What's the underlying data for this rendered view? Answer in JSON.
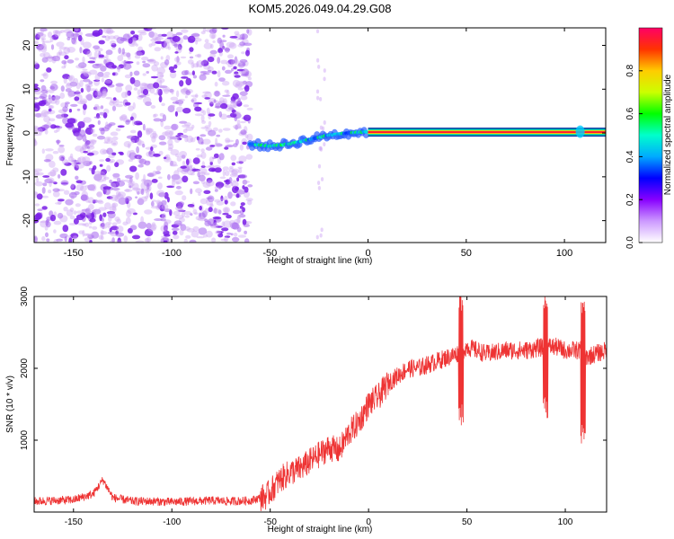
{
  "chart_data": [
    {
      "type": "heatmap",
      "title": "KOM5.2026.049.04.29.G08",
      "xlabel": "Height of straight line (km)",
      "ylabel": "Frequency (Hz)",
      "xlim": [
        -170,
        121
      ],
      "ylim": [
        -25,
        24
      ],
      "x_ticks": [
        -150,
        -100,
        -50,
        0,
        50,
        100
      ],
      "y_ticks": [
        -20,
        -10,
        0,
        10,
        20
      ],
      "colorbar": {
        "label": "Normalized spectral amplitude",
        "range": [
          0,
          1
        ],
        "ticks": [
          0.0,
          0.2,
          0.4,
          0.6,
          0.8
        ],
        "tick_labels": [
          "0.0",
          "0.2",
          "0.4",
          "0.6",
          "0.8"
        ]
      },
      "features": [
        {
          "name": "noise-field",
          "x_range": [
            -170,
            -60
          ],
          "freq_range": [
            -25,
            24
          ],
          "amplitude_range": [
            0.05,
            0.12
          ],
          "description_color": "purple"
        },
        {
          "name": "drift-track",
          "points": [
            [
              -60,
              -2.5
            ],
            [
              -50,
              -3.0
            ],
            [
              -40,
              -2.5
            ],
            [
              -30,
              -1.5
            ],
            [
              -20,
              -0.5
            ],
            [
              -10,
              0
            ],
            [
              0,
              0.3
            ]
          ],
          "amplitude": 0.45
        },
        {
          "name": "stable-line",
          "x_range": [
            0,
            121
          ],
          "freq": 0.2,
          "amplitude": 0.95
        },
        {
          "name": "line-blob",
          "x": 108,
          "freq": 0.3,
          "amplitude": 0.4
        }
      ]
    },
    {
      "type": "line",
      "xlabel": "Height of straight line (km)",
      "ylabel": "SNR (10 * v/v)",
      "xlim": [
        -170,
        121
      ],
      "ylim": [
        0,
        3000
      ],
      "x_ticks": [
        -150,
        -100,
        -50,
        0,
        50,
        100
      ],
      "y_ticks": [
        1000,
        2000,
        3000
      ],
      "series": [
        {
          "name": "SNR",
          "color": "#ee3333",
          "x": [
            -170,
            -160,
            -150,
            -140,
            -135,
            -130,
            -120,
            -110,
            -100,
            -90,
            -80,
            -70,
            -60,
            -52,
            -48,
            -45,
            -40,
            -35,
            -30,
            -25,
            -20,
            -15,
            -10,
            -5,
            0,
            5,
            10,
            15,
            20,
            25,
            30,
            35,
            40,
            45,
            48,
            50,
            55,
            60,
            70,
            80,
            90,
            95,
            100,
            108,
            110,
            115,
            121
          ],
          "values": [
            150,
            160,
            170,
            250,
            450,
            200,
            150,
            150,
            140,
            150,
            160,
            150,
            160,
            220,
            350,
            450,
            550,
            600,
            700,
            800,
            900,
            850,
            1100,
            1250,
            1500,
            1600,
            1800,
            1900,
            2000,
            2000,
            2050,
            2100,
            2150,
            2200,
            2250,
            2300,
            2250,
            2200,
            2250,
            2250,
            2300,
            2300,
            2250,
            2250,
            2150,
            2200,
            2250
          ],
          "spikes": [
            {
              "x": 47,
              "peak": 3050,
              "dip": 1200
            },
            {
              "x": 90,
              "peak": 3050,
              "dip": 1300
            },
            {
              "x": 109,
              "peak": 3000,
              "dip": 950
            }
          ]
        }
      ]
    }
  ],
  "colors": {
    "axis": "#000000",
    "snr_line": "#ee3333",
    "noise": "#8a2be2",
    "background": "#ffffff"
  }
}
